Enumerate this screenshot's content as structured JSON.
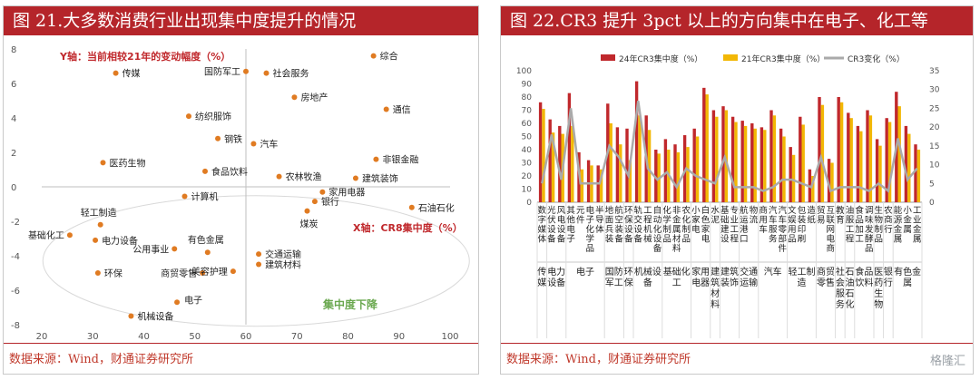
{
  "left_panel": {
    "title": "图 21.大多数消费行业出现集中度提升的情况",
    "source": "数据来源：Wind，财通证券研究所"
  },
  "right_panel": {
    "title": "图 22.CR3 提升 3pct 以上的方向集中在电子、化工等",
    "source": "数据来源：Wind，财通证券研究所"
  },
  "watermark": "格隆汇",
  "chart_data": [
    {
      "type": "scatter",
      "title": "",
      "ylabel": "Y轴：当前相较21年的变动幅度（%）",
      "xlabel": "X轴：CR8集中度（%）",
      "xlim": [
        20,
        100
      ],
      "ylim": [
        -8,
        8
      ],
      "xticks": [
        20,
        30,
        40,
        50,
        60,
        70,
        80,
        90,
        100
      ],
      "yticks": [
        8,
        6,
        4,
        2,
        0,
        -2,
        -4,
        -6,
        -8
      ],
      "cross_x": 60,
      "annotation": "集中度下降",
      "point_color": "#e07b22",
      "points": [
        {
          "name": "综合",
          "x": 85.0,
          "y": 7.6
        },
        {
          "name": "传媒",
          "x": 34.5,
          "y": 6.6
        },
        {
          "name": "国防军工",
          "x": 60.0,
          "y": 6.7
        },
        {
          "name": "社会服务",
          "x": 64.0,
          "y": 6.6
        },
        {
          "name": "房地产",
          "x": 69.5,
          "y": 5.2
        },
        {
          "name": "通信",
          "x": 87.5,
          "y": 4.5
        },
        {
          "name": "纺织服饰",
          "x": 48.8,
          "y": 4.1
        },
        {
          "name": "钢铁",
          "x": 54.5,
          "y": 2.8
        },
        {
          "name": "汽车",
          "x": 61.5,
          "y": 2.5
        },
        {
          "name": "非银金融",
          "x": 85.5,
          "y": 1.6
        },
        {
          "name": "医药生物",
          "x": 32.0,
          "y": 1.4
        },
        {
          "name": "食品饮料",
          "x": 52.0,
          "y": 0.9
        },
        {
          "name": "农林牧渔",
          "x": 66.5,
          "y": 0.6
        },
        {
          "name": "建筑装饰",
          "x": 81.5,
          "y": 0.5
        },
        {
          "name": "家用电器",
          "x": 75.0,
          "y": -0.3
        },
        {
          "name": "计算机",
          "x": 48.0,
          "y": -0.55
        },
        {
          "name": "银行",
          "x": 73.5,
          "y": -0.85
        },
        {
          "name": "石油石化",
          "x": 92.5,
          "y": -1.2
        },
        {
          "name": "煤炭",
          "x": 72.0,
          "y": -1.4
        },
        {
          "name": "轻工制造",
          "x": 31.5,
          "y": -2.2
        },
        {
          "name": "基础化工",
          "x": 25.5,
          "y": -2.8
        },
        {
          "name": "电力设备",
          "x": 30.5,
          "y": -3.1
        },
        {
          "name": "公用事业",
          "x": 46.0,
          "y": -3.6
        },
        {
          "name": "有色金属",
          "x": 52.5,
          "y": -3.8
        },
        {
          "name": "交通运输",
          "x": 62.5,
          "y": -3.9
        },
        {
          "name": "建筑材料",
          "x": 62.5,
          "y": -4.5
        },
        {
          "name": "环保",
          "x": 31.0,
          "y": -5.0
        },
        {
          "name": "商贸零售",
          "x": 51.5,
          "y": -5.0
        },
        {
          "name": "美容护理",
          "x": 57.5,
          "y": -4.9
        },
        {
          "name": "电子",
          "x": 46.5,
          "y": -6.7
        },
        {
          "name": "机械设备",
          "x": 37.5,
          "y": -7.5
        }
      ]
    },
    {
      "type": "bar",
      "title": "",
      "legend_position": "top",
      "y_left_lim": [
        0,
        100
      ],
      "y_left_ticks": [
        0,
        10,
        20,
        30,
        40,
        50,
        60,
        70,
        80,
        90,
        100
      ],
      "y_right_lim": [
        0,
        35
      ],
      "y_right_ticks": [
        0,
        5,
        10,
        15,
        20,
        25,
        30,
        35
      ],
      "categories": [
        {
          "sub": "数字媒体",
          "group": "传媒"
        },
        {
          "sub": "光伏设备",
          "group": "电力设备"
        },
        {
          "sub": "风电设备",
          "group": "电力设备"
        },
        {
          "sub": "其他电子",
          "group": "电子"
        },
        {
          "sub": "元件",
          "group": "电子"
        },
        {
          "sub": "电子化学品",
          "group": "电子"
        },
        {
          "sub": "半导体",
          "group": "电子"
        },
        {
          "sub": "地面兵装",
          "group": "国防军工"
        },
        {
          "sub": "航空装备",
          "group": "国防军工"
        },
        {
          "sub": "环保设备",
          "group": "环保"
        },
        {
          "sub": "轨交设备",
          "group": "机械设备"
        },
        {
          "sub": "工程机械",
          "group": "机械设备"
        },
        {
          "sub": "自动化设备",
          "group": "机械设备"
        },
        {
          "sub": "化学制品",
          "group": "基础化工"
        },
        {
          "sub": "非金属材料",
          "group": "基础化工"
        },
        {
          "sub": "农化制品",
          "group": "基础化工"
        },
        {
          "sub": "小家电",
          "group": "家用电器"
        },
        {
          "sub": "白色家电",
          "group": "家用电器"
        },
        {
          "sub": "水泥",
          "group": "建筑材料"
        },
        {
          "sub": "基础建设",
          "group": "建筑装饰"
        },
        {
          "sub": "专业工程",
          "group": "建筑装饰"
        },
        {
          "sub": "航运港口",
          "group": "交通运输"
        },
        {
          "sub": "物流",
          "group": "交通运输"
        },
        {
          "sub": "商用车",
          "group": "汽车"
        },
        {
          "sub": "汽车服务",
          "group": "汽车"
        },
        {
          "sub": "汽车零部件",
          "group": "汽车"
        },
        {
          "sub": "文娱用品",
          "group": "轻工制造"
        },
        {
          "sub": "包装印刷",
          "group": "轻工制造"
        },
        {
          "sub": "造纸",
          "group": "轻工制造"
        },
        {
          "sub": "贸易",
          "group": "商贸零售"
        },
        {
          "sub": "互联网电商",
          "group": "商贸零售"
        },
        {
          "sub": "教育",
          "group": "社会服务"
        },
        {
          "sub": "油服工程",
          "group": "石油石化"
        },
        {
          "sub": "食品加工",
          "group": "食品饮料"
        },
        {
          "sub": "调味发酵品",
          "group": "食品饮料"
        },
        {
          "sub": "生物制品",
          "group": "医药生物"
        },
        {
          "sub": "农商行",
          "group": "银行"
        },
        {
          "sub": "能源金属",
          "group": "有色金属"
        },
        {
          "sub": "小金属",
          "group": "有色金属"
        },
        {
          "sub": "工业金属",
          "group": "有色金属"
        }
      ],
      "series": [
        {
          "name": "24年CR3集中度（%）",
          "axis": "left",
          "color": "#c0282c",
          "values": [
            76,
            63,
            58,
            83,
            38,
            32,
            28,
            75,
            57,
            56,
            92,
            66,
            40,
            48,
            44,
            51,
            56,
            87,
            70,
            73,
            65,
            62,
            60,
            57,
            70,
            56,
            42,
            65,
            25,
            80,
            33,
            80,
            68,
            58,
            70,
            48,
            64,
            84,
            58,
            44
          ]
        },
        {
          "name": "21年CR3集中度（%）",
          "axis": "left",
          "color": "#f2b705",
          "values": [
            71,
            53,
            52,
            58,
            25,
            28,
            25,
            60,
            44,
            32,
            66,
            55,
            37,
            40,
            38,
            42,
            50,
            82,
            65,
            70,
            61,
            58,
            56,
            55,
            66,
            50,
            36,
            59,
            20,
            74,
            30,
            76,
            64,
            54,
            66,
            43,
            61,
            73,
            52,
            40
          ]
        },
        {
          "name": "CR3变化（%）",
          "axis": "right",
          "color": "#aaaaaa",
          "type": "line",
          "values": [
            5,
            18,
            6,
            25,
            5,
            5,
            5,
            15,
            12,
            7,
            27,
            9,
            6,
            8,
            4,
            9,
            7,
            6,
            5,
            12,
            4,
            4,
            4,
            3,
            4,
            6,
            6,
            5,
            4,
            12,
            3,
            4,
            4,
            4,
            3,
            5,
            3,
            17,
            6,
            9
          ]
        }
      ],
      "group_labels": [
        "传媒",
        "电力设备",
        "电子",
        "国防军工",
        "环保",
        "机械设备",
        "基础化工",
        "家用电器",
        "建筑材料",
        "建筑装饰",
        "交通运输",
        "汽车",
        "轻工制造",
        "商贸零售",
        "社会服务",
        "石油石化",
        "食品饮料",
        "医药生物",
        "银行",
        "有色金属"
      ]
    }
  ]
}
